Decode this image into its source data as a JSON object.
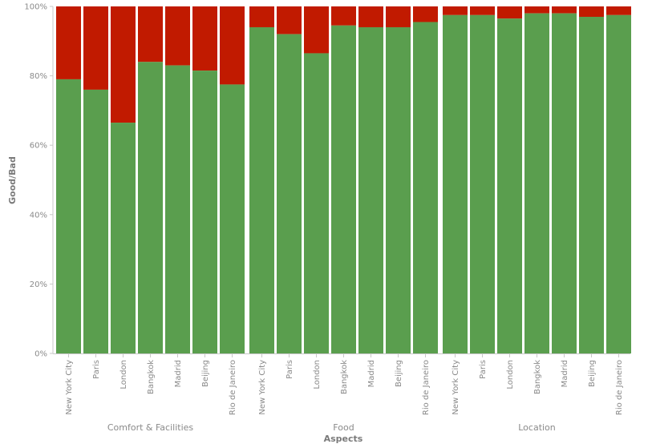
{
  "chart_data": {
    "type": "bar",
    "stacked": true,
    "normalized": true,
    "ylabel": "Good/Bad",
    "xlabel": "Aspects",
    "ylim": [
      0,
      100
    ],
    "y_ticks": [
      "0%",
      "20%",
      "40%",
      "60%",
      "80%",
      "100%"
    ],
    "groups": [
      {
        "label": "Comfort & Facilities",
        "categories": [
          "New York City",
          "Paris",
          "London",
          "Bangkok",
          "Madrid",
          "Beijing",
          "Rio de Janeiro"
        ],
        "good": [
          79,
          76,
          66.5,
          84,
          83,
          81.5,
          77.5
        ]
      },
      {
        "label": "Food",
        "categories": [
          "New York City",
          "Paris",
          "London",
          "Bangkok",
          "Madrid",
          "Beijing",
          "Rio de Janeiro"
        ],
        "good": [
          94,
          92,
          86.5,
          94.5,
          94,
          94,
          95.5
        ]
      },
      {
        "label": "Location",
        "categories": [
          "New York City",
          "Paris",
          "London",
          "Bangkok",
          "Madrid",
          "Beijing",
          "Rio de Janeiro"
        ],
        "good": [
          97.5,
          97.5,
          96.5,
          98,
          98,
          97,
          97.5
        ]
      }
    ],
    "colors": {
      "good": "#5a9e4e",
      "bad": "#c11a00",
      "axis": "#c8c8c8",
      "text": "#8a8a8a"
    },
    "grid": false
  }
}
